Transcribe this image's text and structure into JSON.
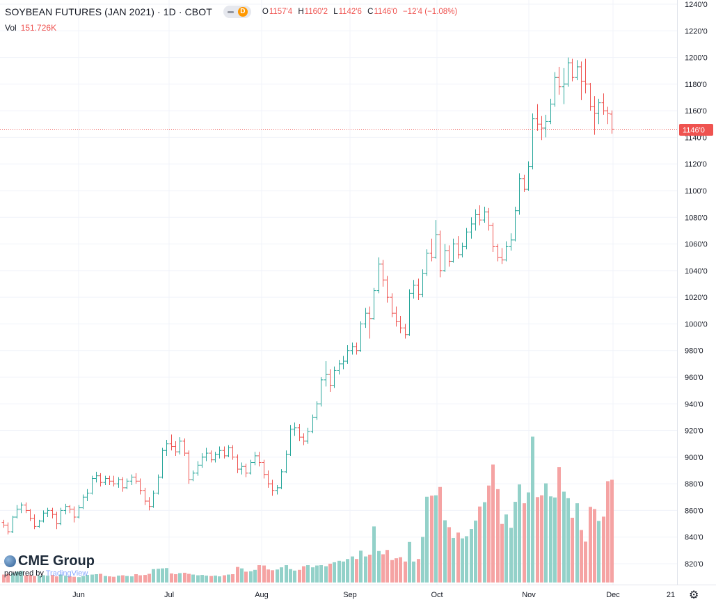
{
  "legend": {
    "symbol": "SOYBEAN FUTURES (JAN 2021) · 1D · CBOT",
    "interval_badge": "D",
    "open_label": "O",
    "open": "1157'4",
    "high_label": "H",
    "high": "1160'2",
    "low_label": "L",
    "low": "1142'6",
    "close_label": "C",
    "close": "1146'0",
    "change": "−12'4 (−1.08%)"
  },
  "volume_legend": {
    "label": "Vol",
    "value": "151.726K"
  },
  "branding": {
    "logo_text": "CME Group",
    "powered_by": "powered by",
    "tradingview": "TradingView"
  },
  "colors": {
    "up": "#26a69a",
    "down": "#ef5350",
    "up_volume": "#93d1c9",
    "down_volume": "#f5a3a3",
    "grid": "#f0f3fa",
    "last_price": "#ef5350"
  },
  "icons": {
    "settings": "gear-icon"
  },
  "chart_data": {
    "type": "ohlc",
    "x_ticks": [
      "Jun",
      "Jul",
      "Aug",
      "Sep",
      "Oct",
      "Nov",
      "Dec",
      "21"
    ],
    "y_ticks": [
      "820'0",
      "840'0",
      "860'0",
      "880'0",
      "900'0",
      "920'0",
      "940'0",
      "960'0",
      "980'0",
      "1000'0",
      "1020'0",
      "1040'0",
      "1060'0",
      "1080'0",
      "1100'0",
      "1120'0",
      "1140'0",
      "1160'0",
      "1180'0",
      "1200'0",
      "1220'0",
      "1240'0"
    ],
    "ylim": [
      812,
      1242
    ],
    "last_price": 1146,
    "last_price_label": "1146'0",
    "grid": true,
    "bars": [
      {
        "o": 851,
        "h": 853,
        "l": 847,
        "c": 849,
        "v": 0.22
      },
      {
        "o": 849,
        "h": 851,
        "l": 842,
        "c": 844,
        "v": 0.24
      },
      {
        "o": 844,
        "h": 856,
        "l": 843,
        "c": 855,
        "v": 0.26
      },
      {
        "o": 855,
        "h": 864,
        "l": 854,
        "c": 861,
        "v": 0.3
      },
      {
        "o": 861,
        "h": 866,
        "l": 858,
        "c": 864,
        "v": 0.32
      },
      {
        "o": 864,
        "h": 866,
        "l": 858,
        "c": 860,
        "v": 0.2
      },
      {
        "o": 860,
        "h": 861,
        "l": 852,
        "c": 854,
        "v": 0.21
      },
      {
        "o": 854,
        "h": 857,
        "l": 846,
        "c": 848,
        "v": 0.18
      },
      {
        "o": 848,
        "h": 853,
        "l": 847,
        "c": 852,
        "v": 0.19
      },
      {
        "o": 852,
        "h": 860,
        "l": 851,
        "c": 858,
        "v": 0.2
      },
      {
        "o": 858,
        "h": 862,
        "l": 855,
        "c": 860,
        "v": 0.19
      },
      {
        "o": 860,
        "h": 862,
        "l": 854,
        "c": 857,
        "v": 0.21
      },
      {
        "o": 857,
        "h": 859,
        "l": 846,
        "c": 850,
        "v": 0.17
      },
      {
        "o": 850,
        "h": 862,
        "l": 849,
        "c": 860,
        "v": 0.22
      },
      {
        "o": 860,
        "h": 865,
        "l": 857,
        "c": 863,
        "v": 0.19
      },
      {
        "o": 863,
        "h": 864,
        "l": 858,
        "c": 861,
        "v": 0.17
      },
      {
        "o": 861,
        "h": 863,
        "l": 851,
        "c": 855,
        "v": 0.16
      },
      {
        "o": 855,
        "h": 864,
        "l": 854,
        "c": 862,
        "v": 0.15
      },
      {
        "o": 862,
        "h": 872,
        "l": 861,
        "c": 870,
        "v": 0.18
      },
      {
        "o": 870,
        "h": 876,
        "l": 867,
        "c": 873,
        "v": 0.21
      },
      {
        "o": 873,
        "h": 886,
        "l": 872,
        "c": 884,
        "v": 0.22
      },
      {
        "o": 884,
        "h": 889,
        "l": 881,
        "c": 886,
        "v": 0.23
      },
      {
        "o": 886,
        "h": 888,
        "l": 878,
        "c": 881,
        "v": 0.24
      },
      {
        "o": 881,
        "h": 886,
        "l": 879,
        "c": 884,
        "v": 0.18
      },
      {
        "o": 884,
        "h": 886,
        "l": 879,
        "c": 882,
        "v": 0.17
      },
      {
        "o": 882,
        "h": 886,
        "l": 878,
        "c": 880,
        "v": 0.16
      },
      {
        "o": 880,
        "h": 885,
        "l": 877,
        "c": 883,
        "v": 0.19
      },
      {
        "o": 883,
        "h": 885,
        "l": 874,
        "c": 877,
        "v": 0.2
      },
      {
        "o": 877,
        "h": 884,
        "l": 876,
        "c": 882,
        "v": 0.18
      },
      {
        "o": 882,
        "h": 887,
        "l": 879,
        "c": 885,
        "v": 0.17
      },
      {
        "o": 885,
        "h": 888,
        "l": 880,
        "c": 882,
        "v": 0.23
      },
      {
        "o": 882,
        "h": 884,
        "l": 872,
        "c": 875,
        "v": 0.2
      },
      {
        "o": 875,
        "h": 877,
        "l": 864,
        "c": 867,
        "v": 0.21
      },
      {
        "o": 867,
        "h": 870,
        "l": 860,
        "c": 863,
        "v": 0.24
      },
      {
        "o": 863,
        "h": 875,
        "l": 862,
        "c": 873,
        "v": 0.37
      },
      {
        "o": 873,
        "h": 887,
        "l": 872,
        "c": 885,
        "v": 0.38
      },
      {
        "o": 885,
        "h": 907,
        "l": 884,
        "c": 905,
        "v": 0.39
      },
      {
        "o": 905,
        "h": 913,
        "l": 901,
        "c": 910,
        "v": 0.4
      },
      {
        "o": 910,
        "h": 917,
        "l": 905,
        "c": 908,
        "v": 0.25
      },
      {
        "o": 908,
        "h": 912,
        "l": 901,
        "c": 904,
        "v": 0.23
      },
      {
        "o": 904,
        "h": 915,
        "l": 902,
        "c": 912,
        "v": 0.26
      },
      {
        "o": 912,
        "h": 914,
        "l": 901,
        "c": 903,
        "v": 0.27
      },
      {
        "o": 903,
        "h": 905,
        "l": 880,
        "c": 883,
        "v": 0.24
      },
      {
        "o": 883,
        "h": 890,
        "l": 882,
        "c": 888,
        "v": 0.22
      },
      {
        "o": 888,
        "h": 897,
        "l": 886,
        "c": 894,
        "v": 0.2
      },
      {
        "o": 894,
        "h": 903,
        "l": 892,
        "c": 900,
        "v": 0.21
      },
      {
        "o": 900,
        "h": 907,
        "l": 897,
        "c": 903,
        "v": 0.19
      },
      {
        "o": 903,
        "h": 905,
        "l": 896,
        "c": 898,
        "v": 0.18
      },
      {
        "o": 898,
        "h": 904,
        "l": 896,
        "c": 902,
        "v": 0.19
      },
      {
        "o": 902,
        "h": 908,
        "l": 899,
        "c": 905,
        "v": 0.17
      },
      {
        "o": 905,
        "h": 908,
        "l": 899,
        "c": 901,
        "v": 0.2
      },
      {
        "o": 901,
        "h": 909,
        "l": 900,
        "c": 907,
        "v": 0.22
      },
      {
        "o": 907,
        "h": 909,
        "l": 898,
        "c": 900,
        "v": 0.23
      },
      {
        "o": 900,
        "h": 902,
        "l": 888,
        "c": 891,
        "v": 0.43
      },
      {
        "o": 891,
        "h": 896,
        "l": 887,
        "c": 893,
        "v": 0.39
      },
      {
        "o": 893,
        "h": 895,
        "l": 885,
        "c": 888,
        "v": 0.3
      },
      {
        "o": 888,
        "h": 898,
        "l": 887,
        "c": 896,
        "v": 0.31
      },
      {
        "o": 896,
        "h": 904,
        "l": 894,
        "c": 901,
        "v": 0.35
      },
      {
        "o": 901,
        "h": 904,
        "l": 893,
        "c": 896,
        "v": 0.48
      },
      {
        "o": 896,
        "h": 898,
        "l": 884,
        "c": 887,
        "v": 0.47
      },
      {
        "o": 887,
        "h": 890,
        "l": 877,
        "c": 880,
        "v": 0.36
      },
      {
        "o": 880,
        "h": 883,
        "l": 871,
        "c": 875,
        "v": 0.34
      },
      {
        "o": 875,
        "h": 879,
        "l": 872,
        "c": 877,
        "v": 0.36
      },
      {
        "o": 877,
        "h": 891,
        "l": 876,
        "c": 889,
        "v": 0.42
      },
      {
        "o": 889,
        "h": 905,
        "l": 888,
        "c": 902,
        "v": 0.48
      },
      {
        "o": 902,
        "h": 924,
        "l": 901,
        "c": 921,
        "v": 0.37
      },
      {
        "o": 921,
        "h": 926,
        "l": 916,
        "c": 922,
        "v": 0.33
      },
      {
        "o": 922,
        "h": 925,
        "l": 912,
        "c": 915,
        "v": 0.35
      },
      {
        "o": 915,
        "h": 918,
        "l": 909,
        "c": 912,
        "v": 0.45
      },
      {
        "o": 912,
        "h": 922,
        "l": 910,
        "c": 919,
        "v": 0.48
      },
      {
        "o": 919,
        "h": 932,
        "l": 918,
        "c": 930,
        "v": 0.42
      },
      {
        "o": 930,
        "h": 942,
        "l": 928,
        "c": 940,
        "v": 0.47
      },
      {
        "o": 940,
        "h": 960,
        "l": 938,
        "c": 958,
        "v": 0.48
      },
      {
        "o": 958,
        "h": 972,
        "l": 953,
        "c": 962,
        "v": 0.45
      },
      {
        "o": 962,
        "h": 966,
        "l": 949,
        "c": 954,
        "v": 0.52
      },
      {
        "o": 954,
        "h": 968,
        "l": 952,
        "c": 965,
        "v": 0.56
      },
      {
        "o": 965,
        "h": 973,
        "l": 962,
        "c": 970,
        "v": 0.6
      },
      {
        "o": 970,
        "h": 976,
        "l": 966,
        "c": 972,
        "v": 0.58
      },
      {
        "o": 972,
        "h": 984,
        "l": 970,
        "c": 980,
        "v": 0.65
      },
      {
        "o": 980,
        "h": 986,
        "l": 977,
        "c": 983,
        "v": 0.72
      },
      {
        "o": 983,
        "h": 986,
        "l": 977,
        "c": 980,
        "v": 0.65
      },
      {
        "o": 980,
        "h": 1002,
        "l": 979,
        "c": 1000,
        "v": 0.88
      },
      {
        "o": 1000,
        "h": 1012,
        "l": 997,
        "c": 1008,
        "v": 0.72
      },
      {
        "o": 1008,
        "h": 1013,
        "l": 989,
        "c": 1004,
        "v": 0.77
      },
      {
        "o": 1004,
        "h": 1027,
        "l": 1003,
        "c": 1025,
        "v": 1.55
      },
      {
        "o": 1025,
        "h": 1050,
        "l": 1023,
        "c": 1045,
        "v": 0.87
      },
      {
        "o": 1045,
        "h": 1048,
        "l": 1028,
        "c": 1033,
        "v": 0.78
      },
      {
        "o": 1033,
        "h": 1036,
        "l": 1016,
        "c": 1020,
        "v": 0.9
      },
      {
        "o": 1020,
        "h": 1023,
        "l": 1005,
        "c": 1008,
        "v": 0.62
      },
      {
        "o": 1008,
        "h": 1013,
        "l": 998,
        "c": 1002,
        "v": 0.67
      },
      {
        "o": 1002,
        "h": 1006,
        "l": 993,
        "c": 997,
        "v": 0.7
      },
      {
        "o": 997,
        "h": 1000,
        "l": 989,
        "c": 992,
        "v": 0.58
      },
      {
        "o": 992,
        "h": 1026,
        "l": 991,
        "c": 1023,
        "v": 1.12
      },
      {
        "o": 1023,
        "h": 1033,
        "l": 1019,
        "c": 1029,
        "v": 0.58
      },
      {
        "o": 1029,
        "h": 1034,
        "l": 1018,
        "c": 1022,
        "v": 0.65
      },
      {
        "o": 1022,
        "h": 1041,
        "l": 1020,
        "c": 1038,
        "v": 1.26
      },
      {
        "o": 1038,
        "h": 1056,
        "l": 1036,
        "c": 1053,
        "v": 2.37
      },
      {
        "o": 1053,
        "h": 1064,
        "l": 1047,
        "c": 1050,
        "v": 2.4
      },
      {
        "o": 1050,
        "h": 1078,
        "l": 1049,
        "c": 1067,
        "v": 2.41
      },
      {
        "o": 1067,
        "h": 1070,
        "l": 1035,
        "c": 1040,
        "v": 2.64
      },
      {
        "o": 1040,
        "h": 1060,
        "l": 1039,
        "c": 1055,
        "v": 1.72
      },
      {
        "o": 1055,
        "h": 1059,
        "l": 1043,
        "c": 1047,
        "v": 1.53
      },
      {
        "o": 1047,
        "h": 1064,
        "l": 1046,
        "c": 1060,
        "v": 1.23
      },
      {
        "o": 1060,
        "h": 1066,
        "l": 1049,
        "c": 1052,
        "v": 1.38
      },
      {
        "o": 1052,
        "h": 1061,
        "l": 1050,
        "c": 1058,
        "v": 1.22
      },
      {
        "o": 1058,
        "h": 1072,
        "l": 1056,
        "c": 1069,
        "v": 1.28
      },
      {
        "o": 1069,
        "h": 1080,
        "l": 1064,
        "c": 1075,
        "v": 1.48
      },
      {
        "o": 1075,
        "h": 1086,
        "l": 1070,
        "c": 1082,
        "v": 1.71
      },
      {
        "o": 1082,
        "h": 1089,
        "l": 1074,
        "c": 1078,
        "v": 2.1
      },
      {
        "o": 1078,
        "h": 1088,
        "l": 1076,
        "c": 1084,
        "v": 2.22
      },
      {
        "o": 1084,
        "h": 1087,
        "l": 1070,
        "c": 1074,
        "v": 2.68
      },
      {
        "o": 1074,
        "h": 1076,
        "l": 1054,
        "c": 1058,
        "v": 3.26
      },
      {
        "o": 1058,
        "h": 1060,
        "l": 1047,
        "c": 1050,
        "v": 2.58
      },
      {
        "o": 1050,
        "h": 1057,
        "l": 1045,
        "c": 1048,
        "v": 1.62
      },
      {
        "o": 1048,
        "h": 1062,
        "l": 1047,
        "c": 1058,
        "v": 1.88
      },
      {
        "o": 1058,
        "h": 1068,
        "l": 1055,
        "c": 1063,
        "v": 1.51
      },
      {
        "o": 1063,
        "h": 1088,
        "l": 1062,
        "c": 1085,
        "v": 2.23
      },
      {
        "o": 1085,
        "h": 1113,
        "l": 1082,
        "c": 1109,
        "v": 2.71
      },
      {
        "o": 1109,
        "h": 1112,
        "l": 1099,
        "c": 1101,
        "v": 2.19
      },
      {
        "o": 1101,
        "h": 1122,
        "l": 1100,
        "c": 1118,
        "v": 2.49
      },
      {
        "o": 1118,
        "h": 1158,
        "l": 1116,
        "c": 1154,
        "v": 4.03
      },
      {
        "o": 1154,
        "h": 1165,
        "l": 1145,
        "c": 1150,
        "v": 2.36
      },
      {
        "o": 1150,
        "h": 1156,
        "l": 1138,
        "c": 1147,
        "v": 2.41
      },
      {
        "o": 1147,
        "h": 1157,
        "l": 1140,
        "c": 1152,
        "v": 2.74
      },
      {
        "o": 1152,
        "h": 1169,
        "l": 1150,
        "c": 1165,
        "v": 2.38
      },
      {
        "o": 1165,
        "h": 1189,
        "l": 1163,
        "c": 1185,
        "v": 2.35
      },
      {
        "o": 1185,
        "h": 1193,
        "l": 1172,
        "c": 1178,
        "v": 3.19
      },
      {
        "o": 1178,
        "h": 1192,
        "l": 1165,
        "c": 1180,
        "v": 2.51
      },
      {
        "o": 1180,
        "h": 1200,
        "l": 1178,
        "c": 1196,
        "v": 2.33
      },
      {
        "o": 1196,
        "h": 1199,
        "l": 1182,
        "c": 1185,
        "v": 1.79
      },
      {
        "o": 1185,
        "h": 1198,
        "l": 1183,
        "c": 1193,
        "v": 2.19
      },
      {
        "o": 1193,
        "h": 1197,
        "l": 1168,
        "c": 1182,
        "v": 1.45
      },
      {
        "o": 1182,
        "h": 1199,
        "l": 1173,
        "c": 1180,
        "v": 1.13
      },
      {
        "o": 1180,
        "h": 1181,
        "l": 1160,
        "c": 1163,
        "v": 2.09
      },
      {
        "o": 1163,
        "h": 1171,
        "l": 1142,
        "c": 1158,
        "v": 2.03
      },
      {
        "o": 1158,
        "h": 1169,
        "l": 1150,
        "c": 1166,
        "v": 1.7
      },
      {
        "o": 1166,
        "h": 1173,
        "l": 1157,
        "c": 1160,
        "v": 1.82
      },
      {
        "o": 1160,
        "h": 1163,
        "l": 1150,
        "c": 1158,
        "v": 2.8
      },
      {
        "o": 1157.5,
        "h": 1160.25,
        "l": 1142.75,
        "c": 1146,
        "v": 2.84
      }
    ]
  }
}
